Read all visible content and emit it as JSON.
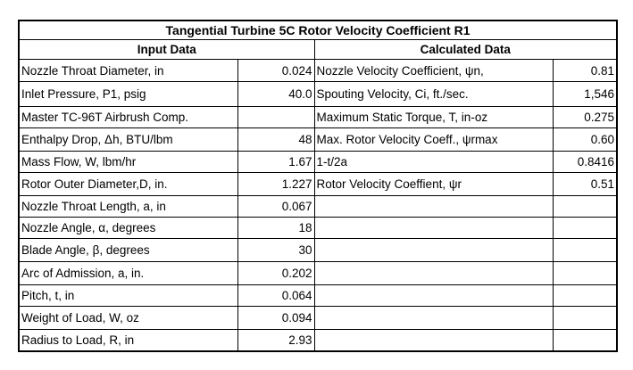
{
  "table": {
    "title": "Tangential Turbine 5C Rotor Velocity Coefficient R1",
    "headers": [
      "Input Data",
      "Calculated Data"
    ],
    "input_rows": [
      [
        "Nozzle Throat Diameter, in",
        "0.024"
      ],
      [
        "Inlet Pressure, P1, psig",
        "40.0"
      ],
      [
        "Master TC-96T Airbrush Comp."
      ],
      [
        "Enthalpy Drop, Δh, BTU/lbm",
        "48"
      ],
      [
        "Mass Flow, W, lbm/hr",
        "1.67"
      ],
      [
        "Rotor Outer Diameter,D, in.",
        "1.227"
      ],
      [
        "Nozzle Throat Length, a, in",
        "0.067"
      ],
      [
        "Nozzle Angle, α, degrees",
        "18"
      ],
      [
        "Blade Angle, β, degrees",
        "30"
      ],
      [
        "Arc of Admission, a, in.",
        "0.202"
      ],
      [
        "Pitch, t, in",
        "0.064"
      ],
      [
        "Weight of Load, W, oz",
        "0.094"
      ],
      [
        "Radius to Load, R, in",
        "2.93"
      ]
    ],
    "calculated_rows": [
      [
        "Nozzle Velocity Coefficient, ψn,",
        "0.81"
      ],
      [
        "Spouting Velocity, Ci, ft./sec.",
        "1,546"
      ],
      [
        "Maximum Static Torque, T, in-oz",
        "0.275"
      ],
      [
        "Max. Rotor Velocity Coeff., ψrmax",
        "0.60"
      ],
      [
        "1-t/2a",
        "0.8416"
      ],
      [
        "Rotor Velocity Coeffient, ψr",
        "0.51"
      ]
    ]
  }
}
